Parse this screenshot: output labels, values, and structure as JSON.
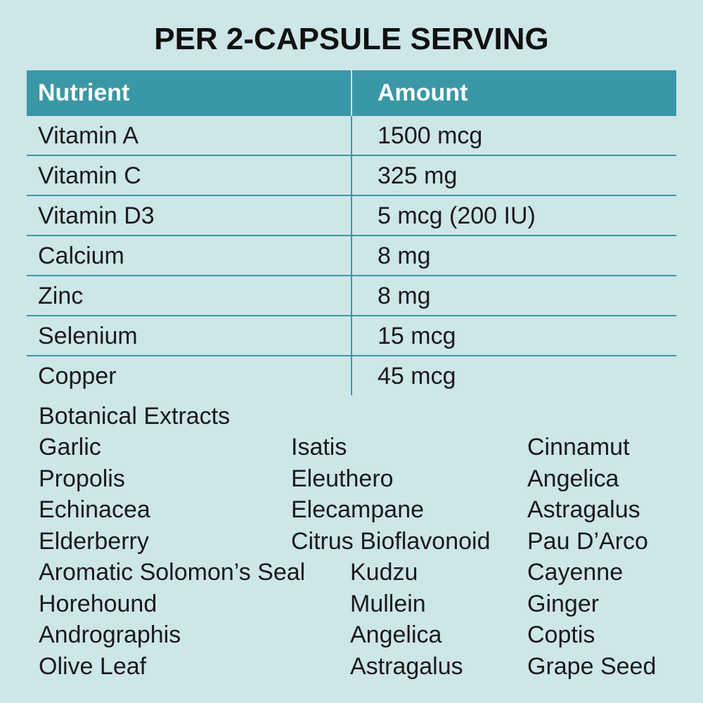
{
  "title": "PER 2-CAPSULE SERVING",
  "table": {
    "headers": [
      "Nutrient",
      "Amount"
    ],
    "rows": [
      {
        "nutrient": "Vitamin A",
        "amount": "1500 mcg"
      },
      {
        "nutrient": "Vitamin C",
        "amount": "325 mg"
      },
      {
        "nutrient": "Vitamin D3",
        "amount": "5 mcg (200 IU)"
      },
      {
        "nutrient": "Calcium",
        "amount": "8 mg"
      },
      {
        "nutrient": "Zinc",
        "amount": "8 mg"
      },
      {
        "nutrient": "Selenium",
        "amount": "15 mcg"
      },
      {
        "nutrient": "Copper",
        "amount": "45 mcg"
      }
    ]
  },
  "botanicals": {
    "heading": "Botanical Extracts",
    "rows": [
      [
        "Garlic",
        "Isatis",
        "Cinnamut"
      ],
      [
        "Propolis",
        "Eleuthero",
        "Angelica"
      ],
      [
        "Echinacea",
        "Elecampane",
        "Astragalus"
      ],
      [
        "Elderberry",
        "Citrus Bioflavonoid",
        "Pau D’Arco"
      ],
      [
        "Aromatic Solomon’s Seal",
        "Kudzu",
        "Cayenne"
      ],
      [
        "Horehound",
        "Mullein",
        "Ginger"
      ],
      [
        "Andrographis",
        "Angelica",
        "Coptis"
      ],
      [
        "Olive Leaf",
        "Astragalus",
        "Grape Seed"
      ]
    ]
  },
  "colors": {
    "background": "#cde6e8",
    "accent": "#3a98a6"
  }
}
